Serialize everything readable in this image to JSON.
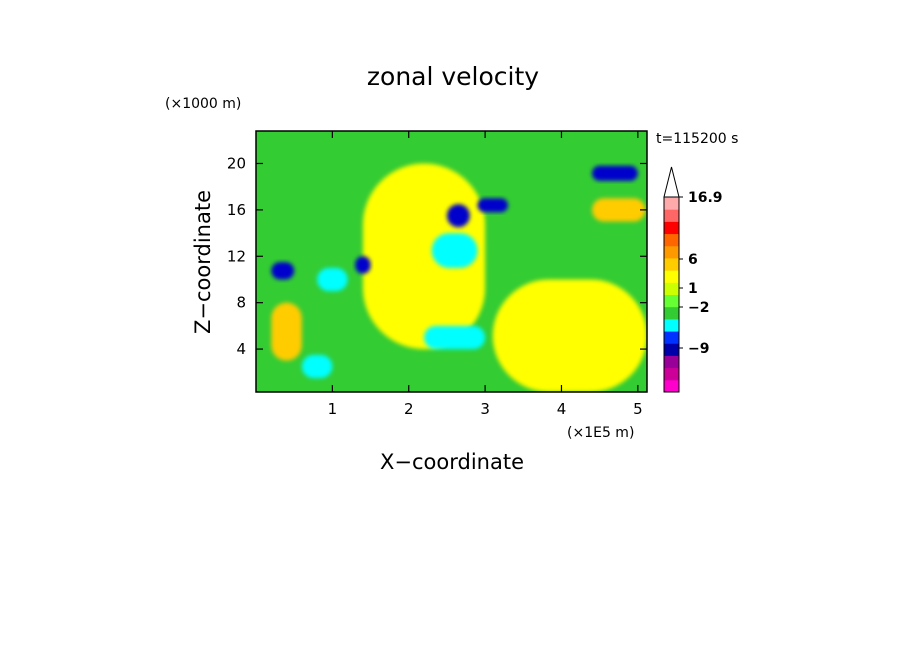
{
  "chart_data": {
    "type": "heatmap",
    "title": "zonal velocity",
    "xlabel": "X−coordinate",
    "ylabel": "Z−coordinate",
    "x_unit": "(×1E5 m)",
    "y_unit": "(×1000 m)",
    "time_label": "t=115200 s",
    "xlim": [
      0,
      5.12
    ],
    "ylim": [
      0.3,
      22.8
    ],
    "x_ticks": [
      "1",
      "2",
      "3",
      "4",
      "5"
    ],
    "y_ticks": [
      "4",
      "8",
      "12",
      "16",
      "20"
    ],
    "colorbar": {
      "labels": [
        "16.9",
        "6",
        "1",
        "−2",
        "−9"
      ],
      "colors": [
        "#ff00cc",
        "#cc0099",
        "#990099",
        "#0000aa",
        "#0033ff",
        "#00ffff",
        "#33cc33",
        "#66ff33",
        "#ccff00",
        "#ffff00",
        "#ffcc00",
        "#ff9900",
        "#ff6600",
        "#ff0000",
        "#ff6666",
        "#ffaaaa"
      ],
      "extend": "max"
    },
    "field_regions": [
      {
        "level": "light-green",
        "x": [
          0,
          5.12
        ],
        "z": [
          0.3,
          22.8
        ]
      },
      {
        "level": "yellow",
        "x": [
          3.1,
          5.12
        ],
        "z": [
          0.3,
          10
        ]
      },
      {
        "level": "yellow",
        "x": [
          1.4,
          3.0
        ],
        "z": [
          4,
          20
        ]
      },
      {
        "level": "orange",
        "x": [
          4.4,
          5.1
        ],
        "z": [
          15,
          17
        ]
      },
      {
        "level": "orange",
        "x": [
          0.2,
          0.6
        ],
        "z": [
          3,
          8
        ]
      },
      {
        "level": "dark-blue",
        "x": [
          4.4,
          5.0
        ],
        "z": [
          18.5,
          19.8
        ]
      },
      {
        "level": "dark-blue",
        "x": [
          2.9,
          3.3
        ],
        "z": [
          15.8,
          17
        ]
      },
      {
        "level": "dark-blue",
        "x": [
          2.5,
          2.8
        ],
        "z": [
          14.5,
          16.5
        ]
      },
      {
        "level": "dark-blue",
        "x": [
          0.2,
          0.5
        ],
        "z": [
          10,
          11.5
        ]
      },
      {
        "level": "dark-blue",
        "x": [
          1.3,
          1.5
        ],
        "z": [
          10.5,
          12
        ]
      },
      {
        "level": "cyan",
        "x": [
          0.8,
          1.2
        ],
        "z": [
          9,
          11
        ]
      },
      {
        "level": "cyan",
        "x": [
          2.3,
          2.9
        ],
        "z": [
          11,
          14
        ]
      },
      {
        "level": "cyan",
        "x": [
          0.6,
          1.0
        ],
        "z": [
          1.5,
          3.5
        ]
      },
      {
        "level": "cyan",
        "x": [
          2.2,
          3.0
        ],
        "z": [
          4,
          6
        ]
      }
    ]
  }
}
